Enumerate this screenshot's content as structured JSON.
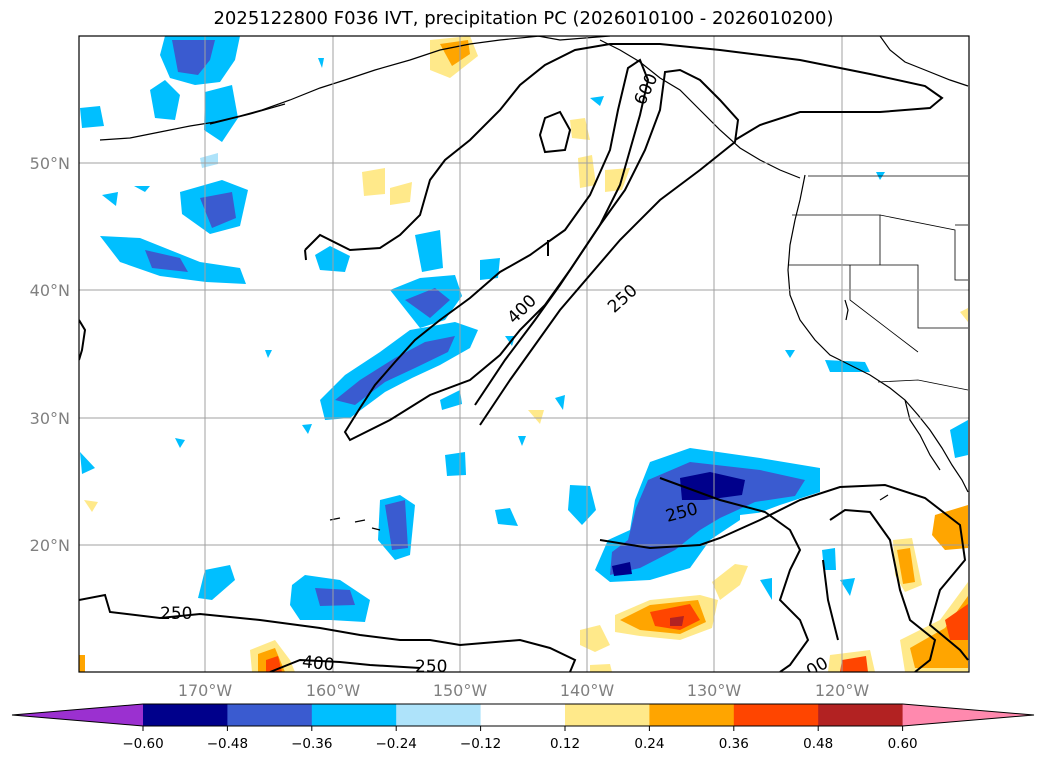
{
  "title": "2025122800 F036 IVT, precipitation PC (2026010100 - 2026010200)",
  "map": {
    "lat_labels": [
      "50°N",
      "40°N",
      "30°N",
      "20°N"
    ],
    "lon_labels": [
      "170°W",
      "160°W",
      "150°W",
      "140°W",
      "130°W",
      "120°W"
    ],
    "ivt_contour_labels": [
      "600",
      "400",
      "250",
      "250",
      "250",
      "400",
      "250",
      "00"
    ]
  },
  "colorbar": {
    "ticks": [
      "−0.60",
      "−0.48",
      "−0.36",
      "−0.24",
      "−0.12",
      "0.12",
      "0.24",
      "0.36",
      "0.48",
      "0.60"
    ],
    "colors": [
      "#9b30d0",
      "#00008b",
      "#3a5bd0",
      "#00bfff",
      "#aee3fa",
      "#ffffff",
      "#ffe98a",
      "#ffa500",
      "#ff4500",
      "#b22222",
      "#ff89ae"
    ]
  },
  "colors": {
    "neg_strong": "#00008b",
    "neg_mid": "#3a5bd0",
    "neg": "#00bfff",
    "neg_light": "#aee3fa",
    "pos_light": "#ffe98a",
    "pos": "#ffa500",
    "pos_strong": "#ff4500",
    "pos_darker": "#b22222"
  }
}
